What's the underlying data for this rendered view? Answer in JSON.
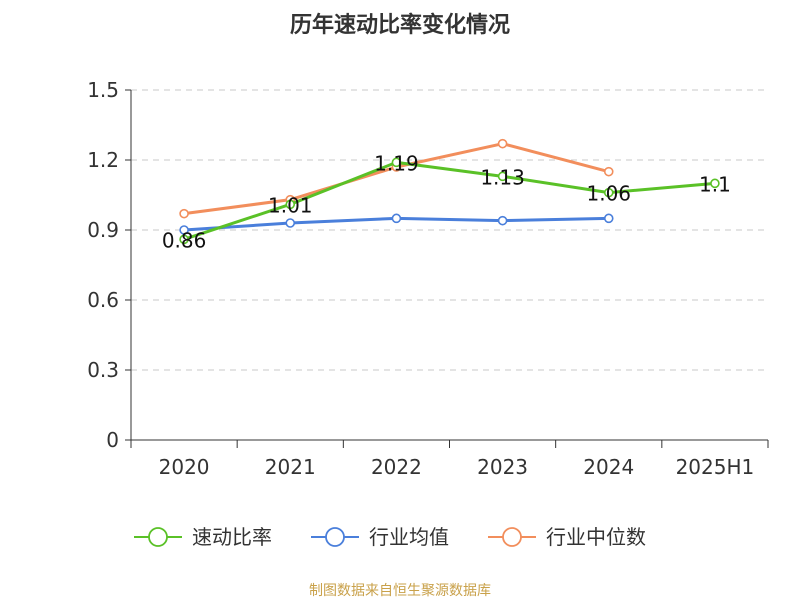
{
  "chart_data": {
    "type": "line",
    "title": "历年速动比率变化情况",
    "categories": [
      "2020",
      "2021",
      "2022",
      "2023",
      "2024",
      "2025H1"
    ],
    "ylim": [
      0,
      1.5
    ],
    "yticks": [
      "0",
      "0.3",
      "0.6",
      "0.9",
      "1.2",
      "1.5"
    ],
    "grid": true,
    "legend_position": "bottom",
    "series": [
      {
        "name": "速动比率",
        "color": "#5ac127",
        "values": [
          0.86,
          1.01,
          1.19,
          1.13,
          1.06,
          1.1
        ],
        "labels": [
          "0.86",
          "1.01",
          "1.19",
          "1.13",
          "1.06",
          "1.1"
        ]
      },
      {
        "name": "行业均值",
        "color": "#4a7fdb",
        "values": [
          0.9,
          0.93,
          0.95,
          0.94,
          0.95,
          null
        ]
      },
      {
        "name": "行业中位数",
        "color": "#f28e5c",
        "values": [
          0.97,
          1.03,
          1.17,
          1.27,
          1.15,
          null
        ]
      }
    ]
  },
  "footer": {
    "source": "制图数据来自恒生聚源数据库"
  }
}
